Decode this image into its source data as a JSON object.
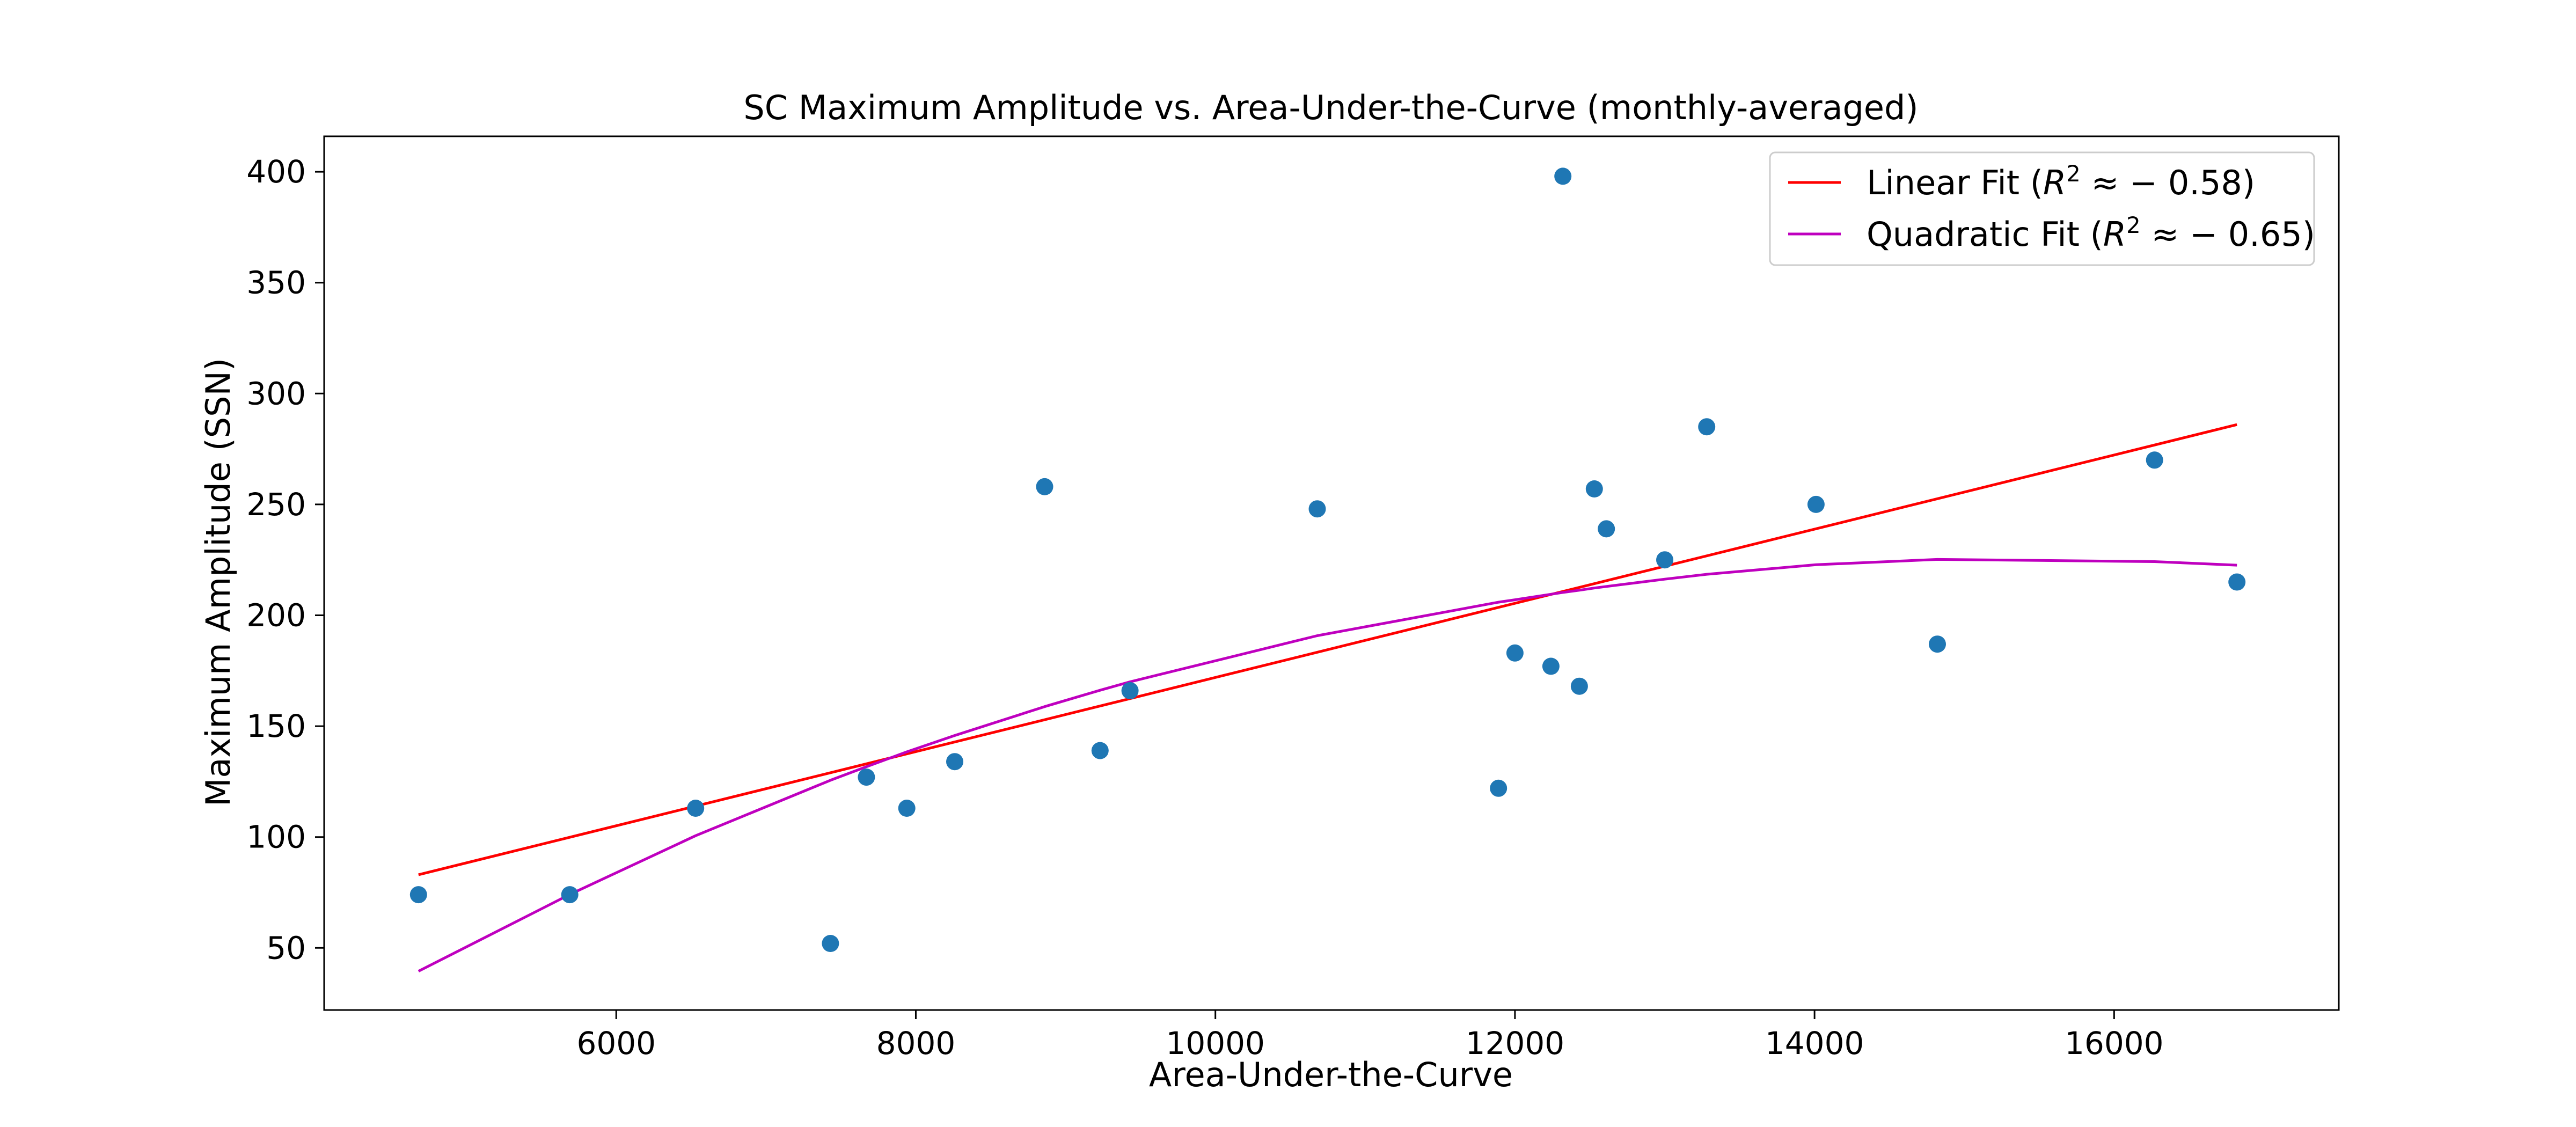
{
  "chart_data": {
    "type": "scatter",
    "title": "SC Maximum Amplitude vs. Area-Under-the-Curve (monthly-averaged)",
    "xlabel": "Area-Under-the-Curve",
    "ylabel": "Maximum Amplitude (SSN)",
    "xlim": [
      4050,
      17500
    ],
    "ylim": [
      22,
      416
    ],
    "xticks": [
      6000,
      8000,
      10000,
      12000,
      14000,
      16000
    ],
    "yticks": [
      50,
      100,
      150,
      200,
      250,
      300,
      350,
      400
    ],
    "grid": false,
    "legend_position": "top-right",
    "colors": {
      "points": "#1f77b4",
      "linear_fit": "#ff0000",
      "quadratic_fit": "#bf00bf"
    },
    "points": [
      {
        "x": 4680,
        "y": 74
      },
      {
        "x": 5690,
        "y": 74
      },
      {
        "x": 6530,
        "y": 113
      },
      {
        "x": 7430,
        "y": 52
      },
      {
        "x": 7670,
        "y": 127
      },
      {
        "x": 7940,
        "y": 113
      },
      {
        "x": 8260,
        "y": 134
      },
      {
        "x": 8860,
        "y": 258
      },
      {
        "x": 9230,
        "y": 139
      },
      {
        "x": 9430,
        "y": 166
      },
      {
        "x": 10680,
        "y": 248
      },
      {
        "x": 11890,
        "y": 122
      },
      {
        "x": 12000,
        "y": 183
      },
      {
        "x": 12240,
        "y": 177
      },
      {
        "x": 12320,
        "y": 398
      },
      {
        "x": 12430,
        "y": 168
      },
      {
        "x": 12530,
        "y": 257
      },
      {
        "x": 12610,
        "y": 239
      },
      {
        "x": 13000,
        "y": 225
      },
      {
        "x": 13280,
        "y": 285
      },
      {
        "x": 14010,
        "y": 250
      },
      {
        "x": 14820,
        "y": 187
      },
      {
        "x": 16270,
        "y": 270
      },
      {
        "x": 16820,
        "y": 215
      }
    ],
    "series": [
      {
        "name": "Linear Fit ($R^2 \\approx -0.58$)",
        "label_main": "Linear Fit (",
        "label_math": "R",
        "label_sup": "2",
        "label_rest": " ≈ − 0.58)",
        "type": "line",
        "x": [
          4680,
          16820
        ],
        "y": [
          83,
          286
        ]
      },
      {
        "name": "Quadratic Fit ($R^2 \\approx -0.65$)",
        "label_main": "Quadratic Fit (",
        "label_math": "R",
        "label_sup": "2",
        "label_rest": " ≈ − 0.65)",
        "type": "line",
        "x": [
          4680,
          5690,
          6530,
          7430,
          7670,
          7940,
          8260,
          8860,
          9230,
          9430,
          10680,
          11890,
          12000,
          12240,
          12320,
          12430,
          12530,
          12610,
          13000,
          13280,
          14010,
          14820,
          16270,
          16820
        ],
        "y": [
          39.5,
          74.1,
          100.6,
          125.6,
          131.7,
          138.4,
          145.8,
          158.8,
          166.2,
          170.0,
          190.8,
          205.9,
          207.0,
          209.5,
          210.3,
          211.3,
          212.3,
          213.0,
          216.3,
          218.5,
          222.8,
          225.2,
          224.2,
          222.6
        ]
      }
    ]
  }
}
